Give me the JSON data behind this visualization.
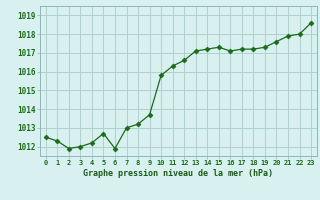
{
  "x": [
    0,
    1,
    2,
    3,
    4,
    5,
    6,
    7,
    8,
    9,
    10,
    11,
    12,
    13,
    14,
    15,
    16,
    17,
    18,
    19,
    20,
    21,
    22,
    23
  ],
  "y": [
    1012.5,
    1012.3,
    1011.9,
    1012.0,
    1012.2,
    1012.7,
    1011.9,
    1013.0,
    1013.2,
    1013.7,
    1015.8,
    1016.3,
    1016.6,
    1017.1,
    1017.2,
    1017.3,
    1017.1,
    1017.2,
    1017.2,
    1017.3,
    1017.6,
    1017.9,
    1018.0,
    1018.6
  ],
  "line_color": "#1a6b1a",
  "marker": "D",
  "marker_size": 2.5,
  "bg_color": "#d8f0f0",
  "grid_color": "#b0d0d0",
  "xlabel": "Graphe pression niveau de la mer (hPa)",
  "xlabel_color": "#1a5c1a",
  "tick_color": "#1a6b1a",
  "ytick_labels": [
    1012,
    1013,
    1014,
    1015,
    1016,
    1017,
    1018,
    1019
  ],
  "ylim": [
    1011.5,
    1019.5
  ],
  "xlim": [
    -0.5,
    23.5
  ],
  "xtick_labels": [
    "0",
    "1",
    "2",
    "3",
    "4",
    "5",
    "6",
    "7",
    "8",
    "9",
    "10",
    "11",
    "12",
    "13",
    "14",
    "15",
    "16",
    "17",
    "18",
    "19",
    "20",
    "21",
    "22",
    "23"
  ]
}
